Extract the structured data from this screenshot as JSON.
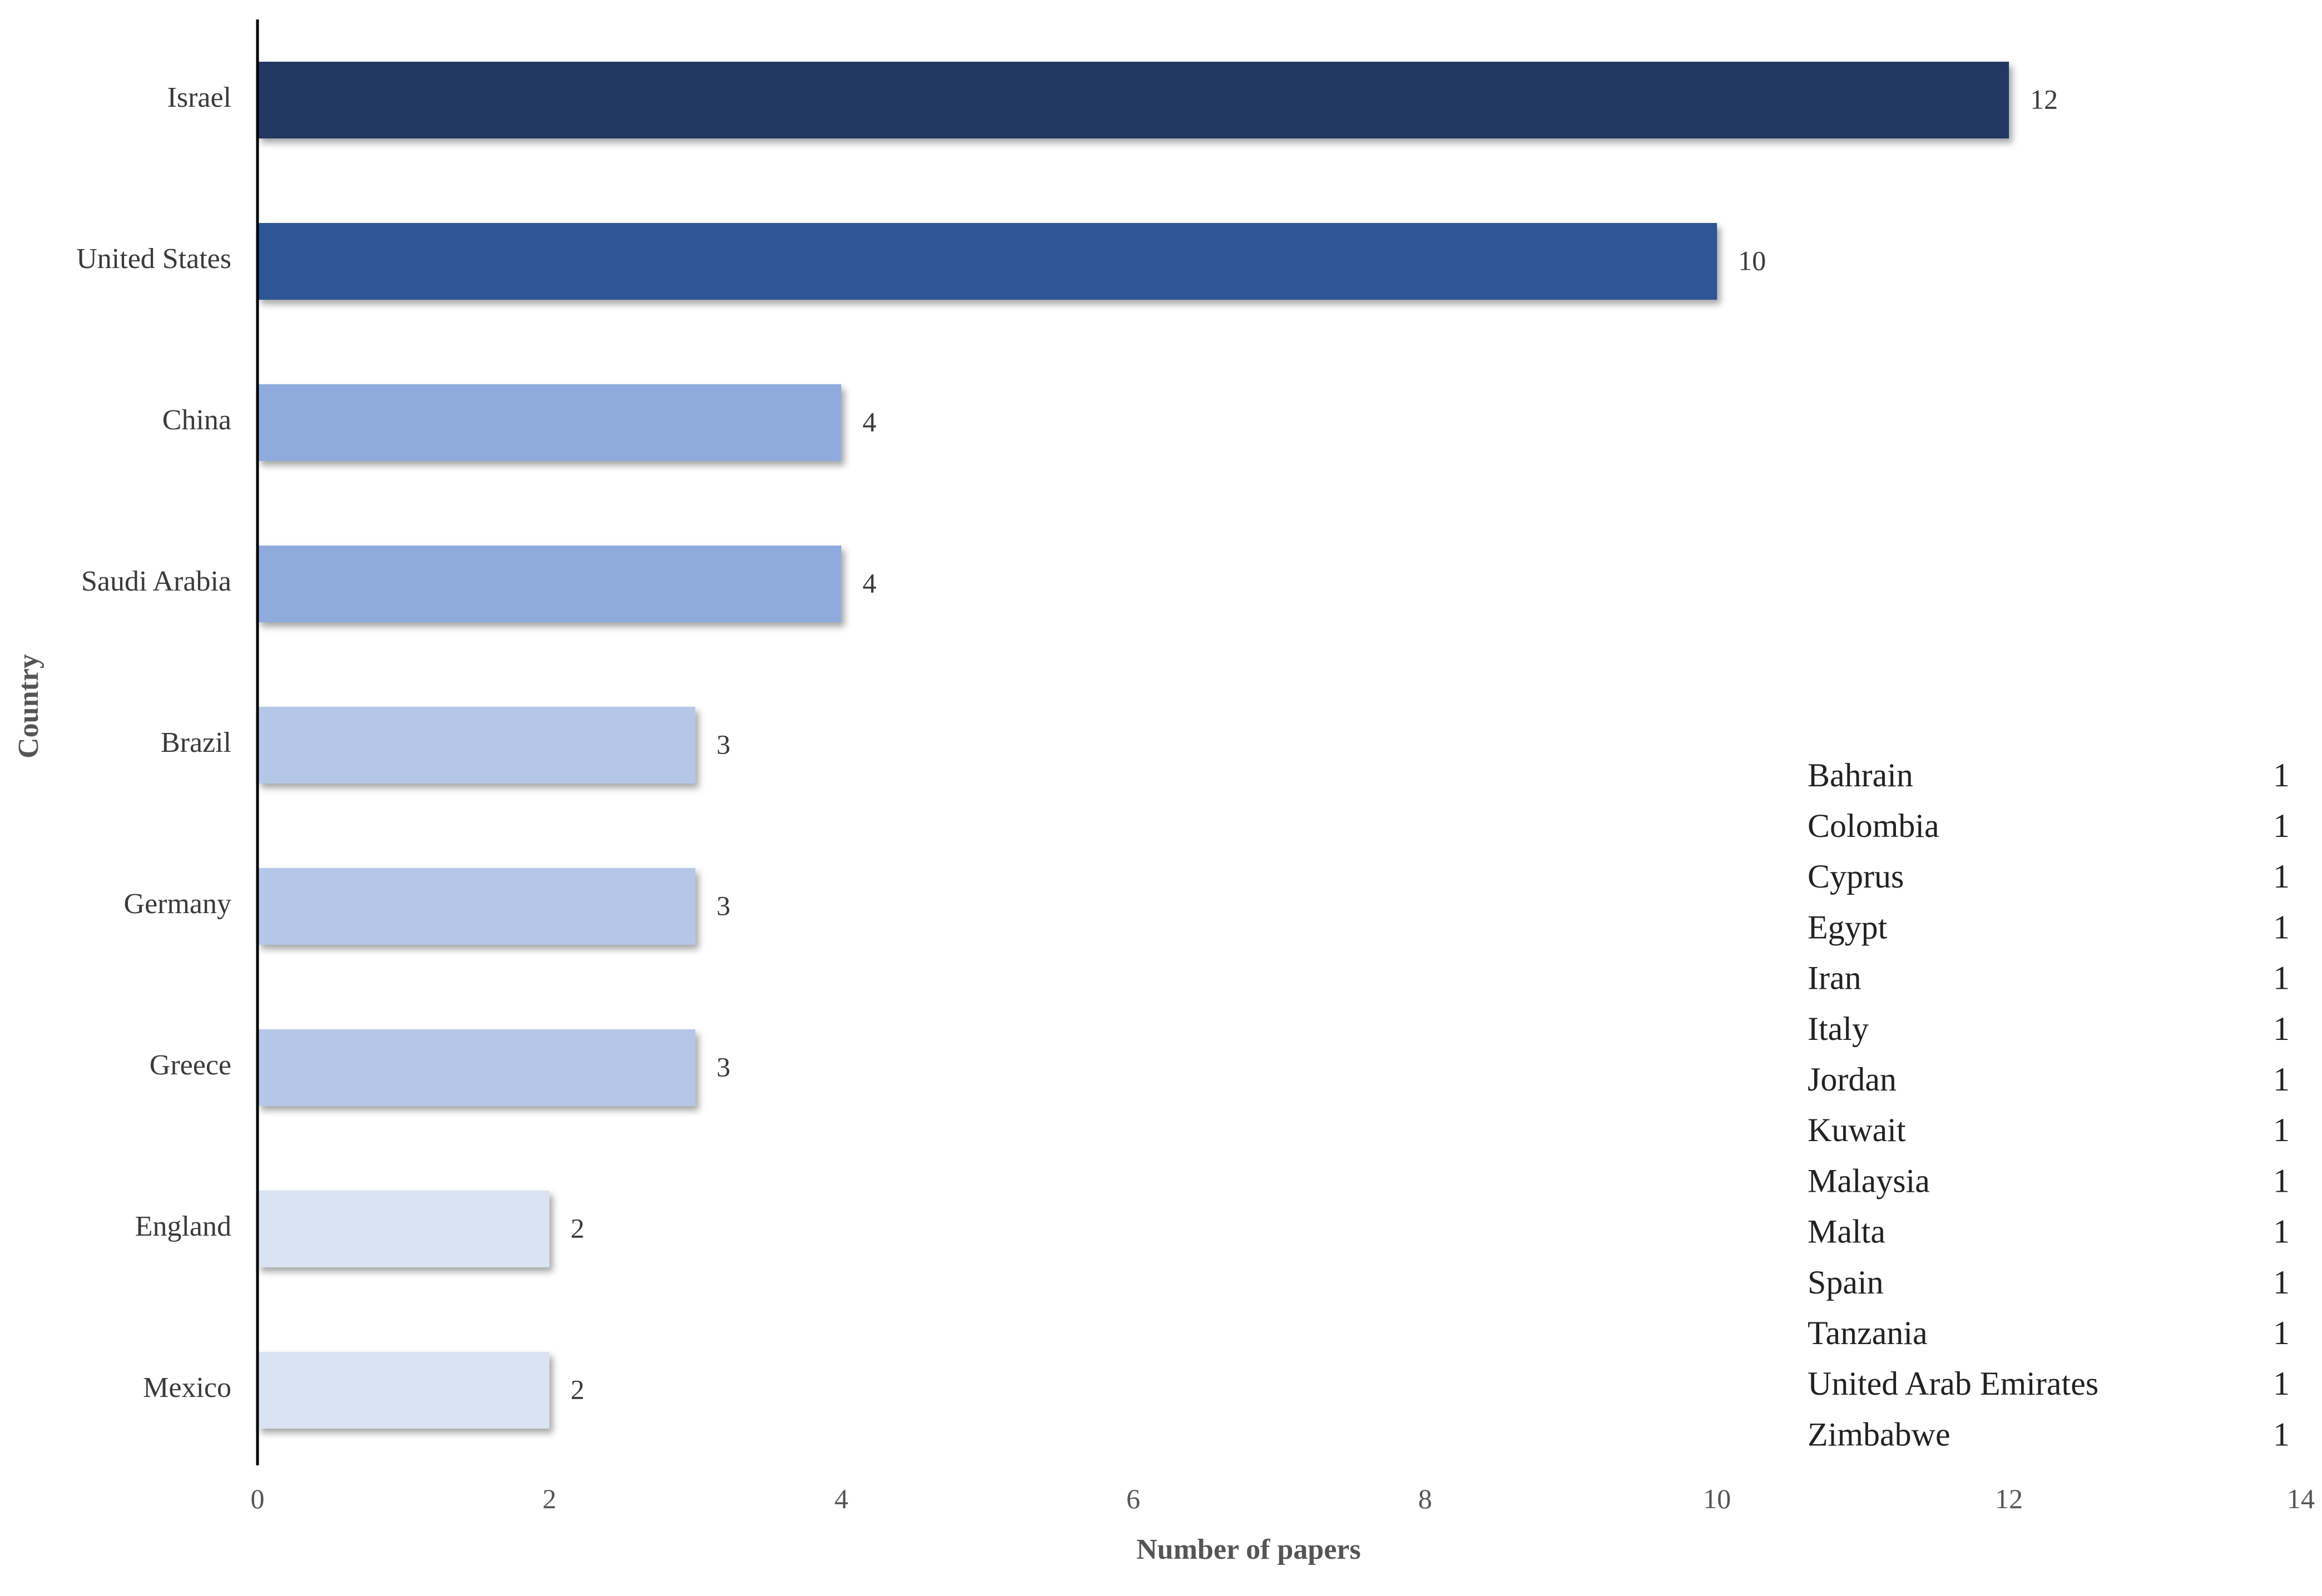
{
  "chart_data": {
    "type": "bar",
    "orientation": "horizontal",
    "categories": [
      "Israel",
      "United States",
      "China",
      "Saudi Arabia",
      "Brazil",
      "Germany",
      "Greece",
      "England",
      "Mexico"
    ],
    "values": [
      12,
      10,
      4,
      4,
      3,
      3,
      3,
      2,
      2
    ],
    "colors": [
      "#213763",
      "#2e5595",
      "#8faadc",
      "#8faadc",
      "#b4c7e7",
      "#b4c7e7",
      "#b4c7e7",
      "#dae3f3",
      "#dae3f3"
    ],
    "xlabel": "Number of papers",
    "ylabel": "Country",
    "xlim": [
      0,
      14
    ],
    "xticks": [
      0,
      2,
      4,
      6,
      8,
      10,
      12,
      14
    ],
    "grid": false,
    "data_labels": true,
    "inset_table": [
      {
        "country": "Bahrain",
        "count": 1
      },
      {
        "country": "Colombia",
        "count": 1
      },
      {
        "country": "Cyprus",
        "count": 1
      },
      {
        "country": "Egypt",
        "count": 1
      },
      {
        "country": "Iran",
        "count": 1
      },
      {
        "country": "Italy",
        "count": 1
      },
      {
        "country": "Jordan",
        "count": 1
      },
      {
        "country": "Kuwait",
        "count": 1
      },
      {
        "country": "Malaysia",
        "count": 1
      },
      {
        "country": "Malta",
        "count": 1
      },
      {
        "country": "Spain",
        "count": 1
      },
      {
        "country": "Tanzania",
        "count": 1
      },
      {
        "country": "United Arab Emirates",
        "count": 1
      },
      {
        "country": "Zimbabwe",
        "count": 1
      }
    ]
  }
}
